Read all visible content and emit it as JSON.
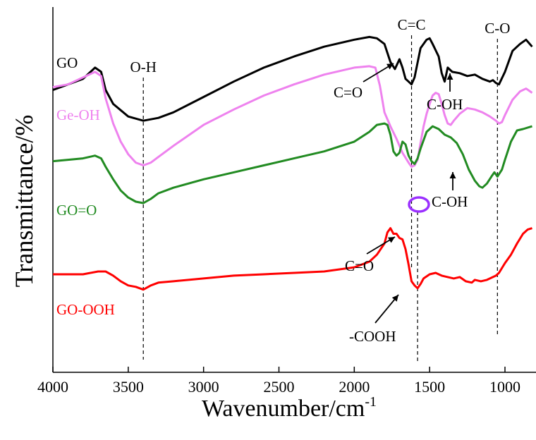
{
  "chart_data": {
    "type": "line",
    "xlabel": "Wavenumber/cm",
    "xlabel_sup": "-1",
    "ylabel": "Transmittance/%",
    "xlim": [
      4000,
      820
    ],
    "xticks": [
      4000,
      3500,
      3000,
      2500,
      2000,
      1500,
      1000
    ],
    "grid": false,
    "legend": "none",
    "series": [
      {
        "name": "GO",
        "color": "#000000",
        "x": [
          4000,
          3900,
          3800,
          3720,
          3680,
          3650,
          3600,
          3500,
          3400,
          3300,
          3200,
          3000,
          2800,
          2600,
          2400,
          2200,
          2000,
          1900,
          1850,
          1800,
          1760,
          1730,
          1700,
          1680,
          1660,
          1640,
          1620,
          1600,
          1560,
          1520,
          1500,
          1480,
          1440,
          1420,
          1400,
          1380,
          1350,
          1300,
          1250,
          1200,
          1150,
          1100,
          1080,
          1060,
          1040,
          1000,
          950,
          900,
          860,
          820
        ],
        "values": [
          8.0,
          8.4,
          8.8,
          9.6,
          9.3,
          8.0,
          7.0,
          6.1,
          5.8,
          6.0,
          6.4,
          7.5,
          8.6,
          9.6,
          10.4,
          11.1,
          11.6,
          11.8,
          11.7,
          11.3,
          10.0,
          9.5,
          10.2,
          9.6,
          8.8,
          8.6,
          8.4,
          8.9,
          11.0,
          11.6,
          11.7,
          11.3,
          10.4,
          9.2,
          8.6,
          9.6,
          9.3,
          9.2,
          9.0,
          9.1,
          8.8,
          8.6,
          8.7,
          8.5,
          8.4,
          9.3,
          10.8,
          11.3,
          11.6,
          11.1
        ]
      },
      {
        "name": "Ge-OH",
        "color": "#ee82ee",
        "x": [
          4000,
          3900,
          3800,
          3720,
          3680,
          3650,
          3600,
          3550,
          3500,
          3450,
          3400,
          3350,
          3300,
          3200,
          3000,
          2800,
          2600,
          2400,
          2200,
          2000,
          1900,
          1860,
          1830,
          1800,
          1760,
          1720,
          1680,
          1640,
          1620,
          1600,
          1580,
          1560,
          1540,
          1520,
          1500,
          1480,
          1460,
          1440,
          1420,
          1400,
          1380,
          1360,
          1340,
          1300,
          1250,
          1200,
          1150,
          1100,
          1060,
          1040,
          1020,
          1000,
          950,
          900,
          860,
          820
        ],
        "values": [
          8.2,
          8.4,
          8.9,
          9.3,
          9.0,
          7.4,
          5.6,
          4.3,
          3.4,
          2.8,
          2.6,
          2.8,
          3.2,
          4.0,
          5.5,
          6.6,
          7.6,
          8.4,
          9.1,
          9.6,
          9.7,
          9.6,
          8.3,
          6.4,
          5.4,
          4.5,
          3.5,
          2.8,
          2.5,
          2.6,
          3.0,
          4.2,
          5.4,
          6.3,
          7.0,
          7.6,
          7.8,
          7.7,
          7.0,
          6.2,
          5.6,
          5.5,
          5.8,
          6.3,
          6.7,
          6.6,
          6.4,
          6.1,
          5.8,
          5.6,
          5.7,
          6.2,
          7.3,
          7.9,
          8.1,
          7.8
        ]
      },
      {
        "name": "GO=O",
        "color": "#228b22",
        "x": [
          4000,
          3900,
          3800,
          3720,
          3680,
          3650,
          3600,
          3550,
          3500,
          3450,
          3400,
          3350,
          3300,
          3200,
          3000,
          2800,
          2600,
          2400,
          2200,
          2000,
          1900,
          1850,
          1800,
          1780,
          1760,
          1740,
          1720,
          1700,
          1680,
          1660,
          1640,
          1620,
          1600,
          1580,
          1560,
          1520,
          1480,
          1440,
          1400,
          1360,
          1320,
          1280,
          1240,
          1200,
          1170,
          1150,
          1120,
          1090,
          1070,
          1050,
          1020,
          1000,
          960,
          920,
          880,
          820
        ],
        "values": [
          2.9,
          3.0,
          3.1,
          3.3,
          3.1,
          2.5,
          1.6,
          0.8,
          0.3,
          0.0,
          -0.1,
          0.2,
          0.6,
          1.0,
          1.6,
          2.1,
          2.6,
          3.1,
          3.6,
          4.3,
          5.0,
          5.5,
          5.6,
          5.5,
          4.8,
          3.6,
          3.3,
          3.5,
          4.3,
          4.1,
          3.3,
          2.9,
          2.7,
          3.1,
          3.8,
          5.0,
          5.4,
          5.2,
          4.8,
          4.6,
          4.2,
          3.4,
          2.3,
          1.5,
          1.1,
          1.0,
          1.3,
          1.8,
          2.1,
          1.8,
          2.3,
          3.0,
          4.3,
          5.1,
          5.2,
          5.4
        ]
      },
      {
        "name": "GO-OOH",
        "color": "#ff0000",
        "x": [
          4000,
          3900,
          3800,
          3700,
          3650,
          3600,
          3550,
          3500,
          3450,
          3400,
          3350,
          3300,
          3200,
          3000,
          2800,
          2600,
          2400,
          2200,
          2000,
          1900,
          1850,
          1800,
          1780,
          1760,
          1740,
          1720,
          1700,
          1680,
          1660,
          1640,
          1620,
          1600,
          1580,
          1560,
          1540,
          1500,
          1460,
          1420,
          1380,
          1340,
          1300,
          1260,
          1220,
          1200,
          1160,
          1120,
          1080,
          1060,
          1040,
          1000,
          960,
          920,
          880,
          850,
          820
        ],
        "values": [
          -5.2,
          -5.2,
          -5.2,
          -5.0,
          -5.0,
          -5.3,
          -5.7,
          -6.0,
          -6.1,
          -6.3,
          -6.0,
          -5.8,
          -5.7,
          -5.5,
          -5.3,
          -5.2,
          -5.1,
          -5.0,
          -4.7,
          -4.3,
          -3.8,
          -3.0,
          -2.2,
          -1.9,
          -2.3,
          -2.3,
          -2.6,
          -2.7,
          -3.4,
          -4.5,
          -5.7,
          -6.0,
          -6.2,
          -5.9,
          -5.5,
          -5.2,
          -5.1,
          -5.3,
          -5.4,
          -5.5,
          -5.4,
          -5.7,
          -5.8,
          -5.6,
          -5.7,
          -5.6,
          -5.4,
          -5.3,
          -5.1,
          -4.4,
          -3.8,
          -3.0,
          -2.3,
          -2.0,
          -1.9
        ]
      }
    ],
    "reference_lines": [
      {
        "x": 3400,
        "label": "O-H"
      },
      {
        "x": 1620,
        "label": "C=C"
      },
      {
        "x": 1580,
        "label": ""
      },
      {
        "x": 1050,
        "label": "C-O"
      }
    ],
    "annotations": [
      {
        "text": "C=O",
        "series": "GO",
        "x": 1730
      },
      {
        "text": "C-OH",
        "series": "GO",
        "x": 1400
      },
      {
        "text": "C-OH",
        "series": "Ge-OH",
        "x": 1400
      },
      {
        "text": "C=O",
        "series": "GO=O",
        "x": 1720
      },
      {
        "text": "-COOH",
        "series": "GO-OOH",
        "x": 1700
      }
    ],
    "marker": {
      "shape": "ellipse",
      "color": "#9b30ff",
      "x": 1570
    }
  }
}
